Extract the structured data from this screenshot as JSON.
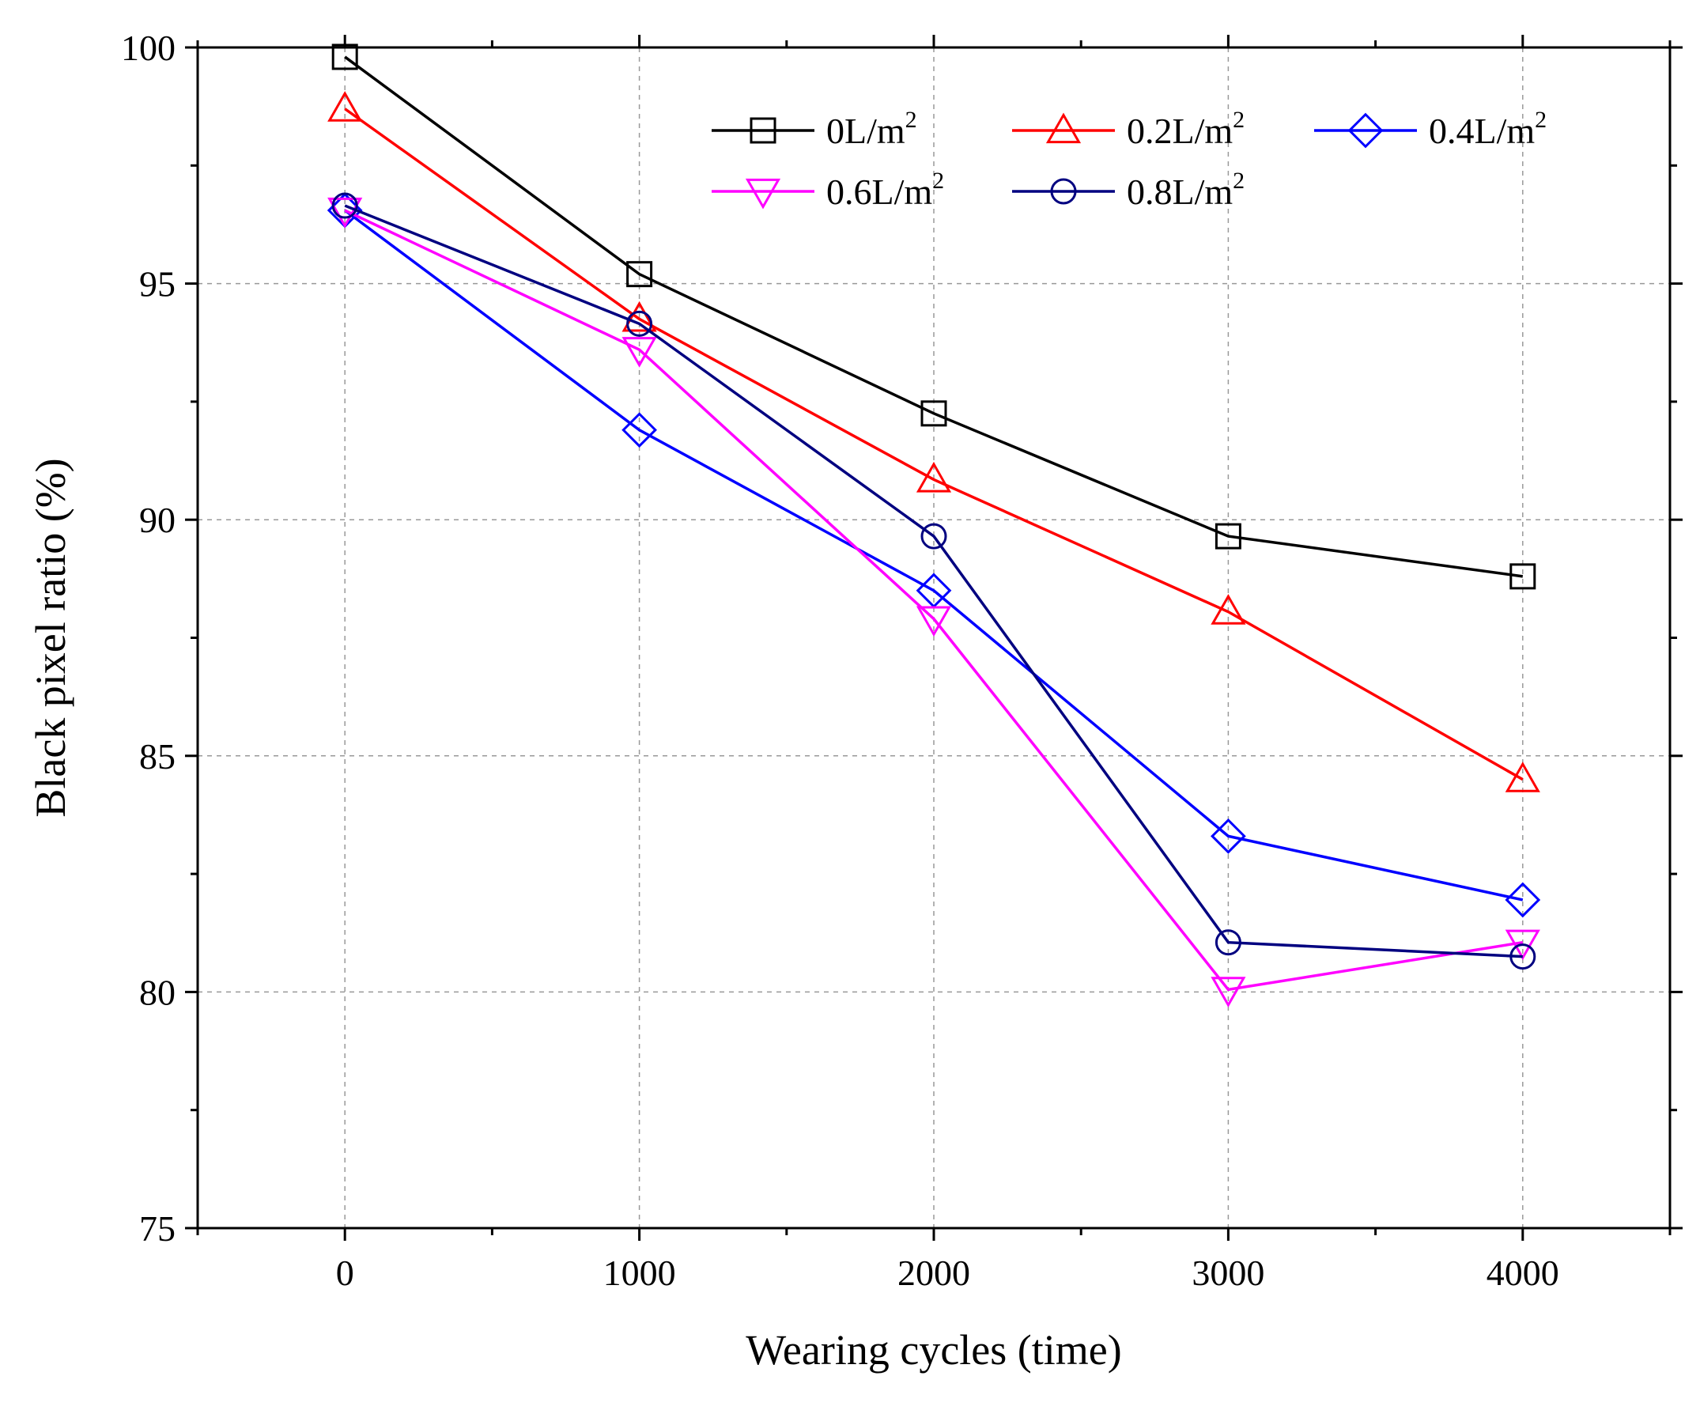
{
  "chart_data": {
    "type": "line",
    "title": "",
    "xlabel": "Wearing cycles (time)",
    "ylabel": "Black pixel ratio (%)",
    "xlim": [
      -500,
      4500
    ],
    "ylim": [
      75,
      100
    ],
    "x_ticks": [
      0,
      1000,
      2000,
      3000,
      4000
    ],
    "y_ticks": [
      75,
      80,
      85,
      90,
      95,
      100
    ],
    "x_tick_labels": [
      "0",
      "1000",
      "2000",
      "3000",
      "4000"
    ],
    "y_tick_labels": [
      "75",
      "80",
      "85",
      "90",
      "95",
      "100"
    ],
    "grid": true,
    "legend_position": "top-right",
    "x": [
      0,
      1000,
      2000,
      3000,
      4000
    ],
    "series": [
      {
        "name": "0L/m",
        "sup": "2",
        "color": "#000000",
        "marker": "square",
        "values": [
          99.8,
          95.2,
          92.25,
          89.65,
          88.8
        ]
      },
      {
        "name": "0.2L/m",
        "sup": "2",
        "color": "#ff0000",
        "marker": "triangle-up",
        "values": [
          98.7,
          94.25,
          90.85,
          88.05,
          84.5
        ]
      },
      {
        "name": "0.4L/m",
        "sup": "2",
        "color": "#0000ff",
        "marker": "diamond",
        "values": [
          96.55,
          91.9,
          88.5,
          83.3,
          81.95
        ]
      },
      {
        "name": "0.6L/m",
        "sup": "2",
        "color": "#ff00ff",
        "marker": "triangle-down",
        "values": [
          96.55,
          93.6,
          87.9,
          80.05,
          81.05
        ]
      },
      {
        "name": "0.8L/m",
        "sup": "2",
        "color": "#000080",
        "marker": "circle",
        "values": [
          96.65,
          94.15,
          89.65,
          81.05,
          80.75
        ]
      }
    ]
  }
}
